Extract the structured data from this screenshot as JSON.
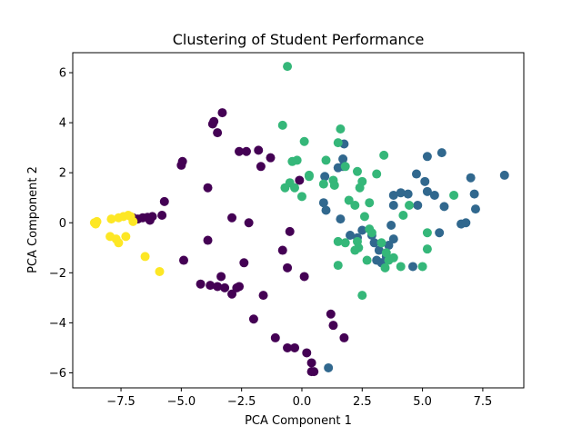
{
  "chart_data": {
    "type": "scatter",
    "title": "Clustering of Student Performance",
    "xlabel": "PCA Component 1",
    "ylabel": "PCA Component 2",
    "xlim": [
      -9.5,
      9.2
    ],
    "ylim": [
      -6.6,
      6.8
    ],
    "xticks": [
      -7.5,
      -5.0,
      -2.5,
      0.0,
      2.5,
      5.0,
      7.5
    ],
    "xtick_labels": [
      "−7.5",
      "−5.0",
      "−2.5",
      "0.0",
      "2.5",
      "5.0",
      "7.5"
    ],
    "yticks": [
      -6,
      -4,
      -2,
      0,
      2,
      4,
      6
    ],
    "ytick_labels": [
      "−6",
      "−4",
      "−2",
      "0",
      "2",
      "4",
      "6"
    ],
    "grid": false,
    "series": [
      {
        "color": "#440154",
        "points": [
          [
            -7.0,
            0.2
          ],
          [
            -6.8,
            0.15
          ],
          [
            -6.6,
            0.2
          ],
          [
            -6.4,
            0.22
          ],
          [
            -6.2,
            0.25
          ],
          [
            -6.3,
            0.1
          ],
          [
            -5.8,
            0.3
          ],
          [
            -5.7,
            0.85
          ],
          [
            -5.0,
            2.3
          ],
          [
            -4.95,
            2.45
          ],
          [
            -4.9,
            -1.5
          ],
          [
            -3.9,
            1.4
          ],
          [
            -3.9,
            -0.7
          ],
          [
            -3.7,
            3.95
          ],
          [
            -3.65,
            4.05
          ],
          [
            -3.5,
            3.6
          ],
          [
            -3.3,
            4.4
          ],
          [
            -2.9,
            0.2
          ],
          [
            -2.6,
            2.85
          ],
          [
            -2.3,
            2.85
          ],
          [
            -2.2,
            0.0
          ],
          [
            -2.4,
            -1.6
          ],
          [
            -1.8,
            2.9
          ],
          [
            -1.7,
            2.25
          ],
          [
            -1.3,
            2.6
          ],
          [
            -0.8,
            -1.1
          ],
          [
            -0.5,
            -0.35
          ],
          [
            -0.6,
            -1.8
          ],
          [
            -0.1,
            1.7
          ],
          [
            0.1,
            -2.15
          ],
          [
            -4.2,
            -2.45
          ],
          [
            -3.8,
            -2.5
          ],
          [
            -3.5,
            -2.55
          ],
          [
            -3.2,
            -2.6
          ],
          [
            -3.35,
            -2.15
          ],
          [
            -2.9,
            -2.85
          ],
          [
            -2.6,
            -2.55
          ],
          [
            -2.7,
            -2.6
          ],
          [
            -1.6,
            -2.9
          ],
          [
            -2.0,
            -3.85
          ],
          [
            -1.1,
            -4.6
          ],
          [
            -0.6,
            -5.0
          ],
          [
            -0.3,
            -5.0
          ],
          [
            0.2,
            -5.2
          ],
          [
            0.4,
            -5.6
          ],
          [
            0.4,
            -5.95
          ],
          [
            0.5,
            -5.95
          ],
          [
            1.2,
            -3.65
          ],
          [
            1.3,
            -4.1
          ],
          [
            1.75,
            -4.6
          ]
        ]
      },
      {
        "color": "#31688e",
        "points": [
          [
            0.9,
            0.8
          ],
          [
            1.0,
            0.5
          ],
          [
            0.95,
            1.85
          ],
          [
            1.5,
            2.2
          ],
          [
            1.7,
            2.55
          ],
          [
            1.7,
            2.25
          ],
          [
            1.75,
            3.15
          ],
          [
            1.6,
            0.15
          ],
          [
            2.0,
            -0.5
          ],
          [
            2.3,
            -0.6
          ],
          [
            2.5,
            -0.3
          ],
          [
            2.9,
            -0.5
          ],
          [
            3.0,
            -0.8
          ],
          [
            3.2,
            -1.1
          ],
          [
            3.3,
            -1.6
          ],
          [
            3.1,
            -1.5
          ],
          [
            3.5,
            -1.35
          ],
          [
            3.6,
            -0.9
          ],
          [
            3.8,
            -0.65
          ],
          [
            3.7,
            -0.1
          ],
          [
            3.8,
            0.7
          ],
          [
            3.8,
            1.1
          ],
          [
            4.1,
            1.2
          ],
          [
            4.4,
            1.15
          ],
          [
            4.6,
            -1.75
          ],
          [
            4.75,
            1.95
          ],
          [
            4.8,
            0.7
          ],
          [
            5.1,
            1.65
          ],
          [
            5.2,
            1.25
          ],
          [
            5.5,
            1.1
          ],
          [
            5.7,
            -0.4
          ],
          [
            5.9,
            0.65
          ],
          [
            5.2,
            2.65
          ],
          [
            5.8,
            2.8
          ],
          [
            6.6,
            -0.05
          ],
          [
            6.8,
            0.0
          ],
          [
            7.0,
            1.8
          ],
          [
            7.15,
            1.15
          ],
          [
            7.2,
            0.55
          ],
          [
            8.4,
            1.9
          ],
          [
            1.1,
            -5.8
          ]
        ]
      },
      {
        "color": "#35b779",
        "points": [
          [
            -0.6,
            6.25
          ],
          [
            -0.8,
            3.9
          ],
          [
            -0.2,
            2.5
          ],
          [
            0.1,
            3.25
          ],
          [
            0.3,
            1.9
          ],
          [
            -0.4,
            2.45
          ],
          [
            -0.7,
            1.4
          ],
          [
            -0.5,
            1.6
          ],
          [
            -0.3,
            1.4
          ],
          [
            0.0,
            1.05
          ],
          [
            0.3,
            1.85
          ],
          [
            0.9,
            1.55
          ],
          [
            1.0,
            2.5
          ],
          [
            1.3,
            1.7
          ],
          [
            1.35,
            1.5
          ],
          [
            1.5,
            3.2
          ],
          [
            1.6,
            3.75
          ],
          [
            1.8,
            2.25
          ],
          [
            1.95,
            0.9
          ],
          [
            2.2,
            0.7
          ],
          [
            2.3,
            2.05
          ],
          [
            2.4,
            1.4
          ],
          [
            2.5,
            1.65
          ],
          [
            2.8,
            0.8
          ],
          [
            3.1,
            1.95
          ],
          [
            3.4,
            2.7
          ],
          [
            2.6,
            0.25
          ],
          [
            2.8,
            -0.25
          ],
          [
            2.9,
            -0.4
          ],
          [
            3.3,
            -0.8
          ],
          [
            3.5,
            -1.2
          ],
          [
            3.6,
            -1.5
          ],
          [
            3.8,
            -1.4
          ],
          [
            4.1,
            -1.75
          ],
          [
            4.2,
            0.3
          ],
          [
            4.45,
            0.7
          ],
          [
            5.0,
            -1.75
          ],
          [
            5.2,
            -1.05
          ],
          [
            5.2,
            -0.4
          ],
          [
            6.3,
            1.1
          ],
          [
            2.5,
            -2.9
          ],
          [
            1.5,
            -1.7
          ],
          [
            1.5,
            -0.75
          ],
          [
            1.8,
            -0.8
          ],
          [
            2.3,
            -0.75
          ],
          [
            2.35,
            -1.0
          ],
          [
            2.2,
            -1.1
          ],
          [
            2.7,
            -1.5
          ],
          [
            3.45,
            -1.8
          ]
        ]
      },
      {
        "color": "#fde725",
        "points": [
          [
            -8.6,
            0.0
          ],
          [
            -8.55,
            -0.05
          ],
          [
            -8.5,
            0.05
          ],
          [
            -7.9,
            0.15
          ],
          [
            -7.6,
            0.2
          ],
          [
            -7.4,
            0.25
          ],
          [
            -7.2,
            0.3
          ],
          [
            -7.1,
            0.25
          ],
          [
            -7.0,
            0.05
          ],
          [
            -7.95,
            -0.55
          ],
          [
            -7.7,
            -0.65
          ],
          [
            -7.6,
            -0.8
          ],
          [
            -7.3,
            -0.55
          ],
          [
            -6.5,
            -1.35
          ],
          [
            -5.9,
            -1.95
          ]
        ]
      }
    ]
  }
}
